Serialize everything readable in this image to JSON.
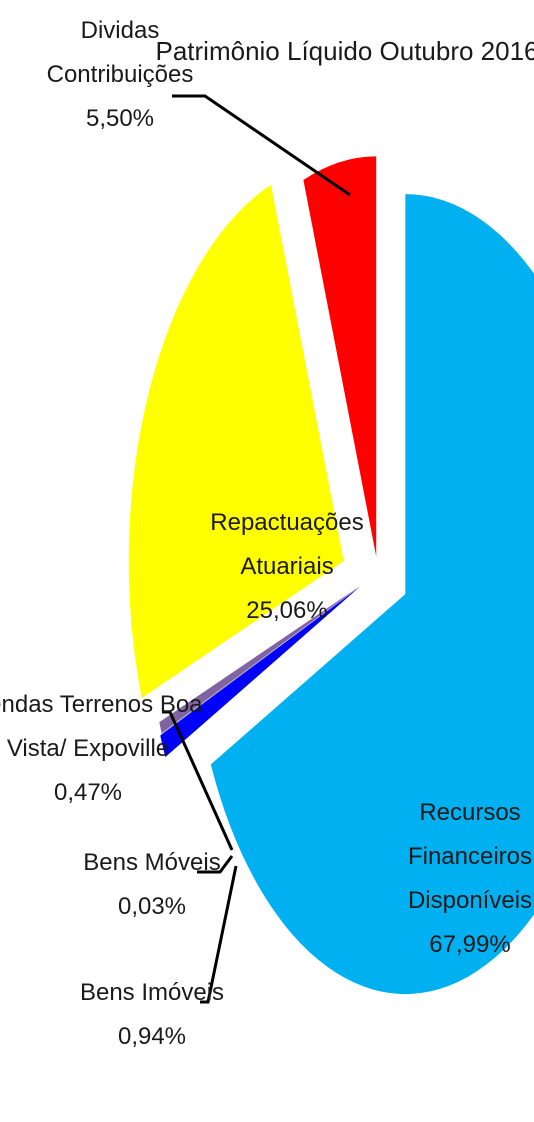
{
  "chart_data": {
    "type": "pie",
    "title": "Patrimônio Líquido Outubro 2016",
    "slices": [
      {
        "label_lines": [
          "Recursos",
          "Financeiros",
          "Disponíveis"
        ],
        "value_text": "67,99%",
        "value": 67.99,
        "color": "#00b0f0"
      },
      {
        "label_lines": [
          "Bens Imóveis"
        ],
        "value_text": "0,94%",
        "value": 0.94,
        "color": "#0000ff"
      },
      {
        "label_lines": [
          "Bens Móveis"
        ],
        "value_text": "0,03%",
        "value": 0.03,
        "color": "#7b7b7b"
      },
      {
        "label_lines": [
          "Vendas Terrenos Boa",
          "Vista/ Expoville"
        ],
        "value_text": "0,47%",
        "value": 0.47,
        "color": "#8064a2"
      },
      {
        "label_lines": [
          "Repactuações",
          "Atuariais"
        ],
        "value_text": "25,06%",
        "value": 25.06,
        "color": "#ffff00"
      },
      {
        "label_lines": [
          "Dividas",
          "Contribuições"
        ],
        "value_text": "5,50%",
        "value": 5.5,
        "color": "#ff0000"
      }
    ]
  }
}
